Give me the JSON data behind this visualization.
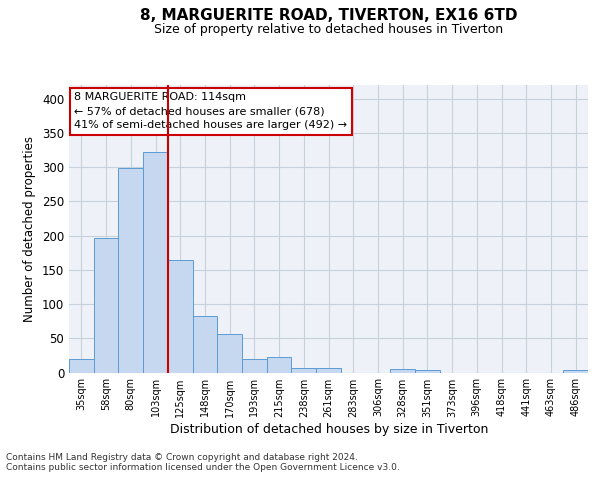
{
  "title1": "8, MARGUERITE ROAD, TIVERTON, EX16 6TD",
  "title2": "Size of property relative to detached houses in Tiverton",
  "xlabel": "Distribution of detached houses by size in Tiverton",
  "ylabel": "Number of detached properties",
  "categories": [
    "35sqm",
    "58sqm",
    "80sqm",
    "103sqm",
    "125sqm",
    "148sqm",
    "170sqm",
    "193sqm",
    "215sqm",
    "238sqm",
    "261sqm",
    "283sqm",
    "306sqm",
    "328sqm",
    "351sqm",
    "373sqm",
    "396sqm",
    "418sqm",
    "441sqm",
    "463sqm",
    "486sqm"
  ],
  "values": [
    20,
    197,
    299,
    322,
    165,
    83,
    56,
    20,
    22,
    7,
    6,
    0,
    0,
    5,
    4,
    0,
    0,
    0,
    0,
    0,
    4
  ],
  "bar_color": "#c5d8f0",
  "bar_edge_color": "#5b9bd5",
  "grid_color": "#c8d0dc",
  "vline_color": "#cc0000",
  "annotation_text": "8 MARGUERITE ROAD: 114sqm\n← 57% of detached houses are smaller (678)\n41% of semi-detached houses are larger (492) →",
  "annotation_box_color": "#ffffff",
  "annotation_box_edge": "#cc0000",
  "footer": "Contains HM Land Registry data © Crown copyright and database right 2024.\nContains public sector information licensed under the Open Government Licence v3.0.",
  "ylim": [
    0,
    420
  ],
  "yticks": [
    0,
    50,
    100,
    150,
    200,
    250,
    300,
    350,
    400
  ],
  "bg_color": "#eef2f8"
}
